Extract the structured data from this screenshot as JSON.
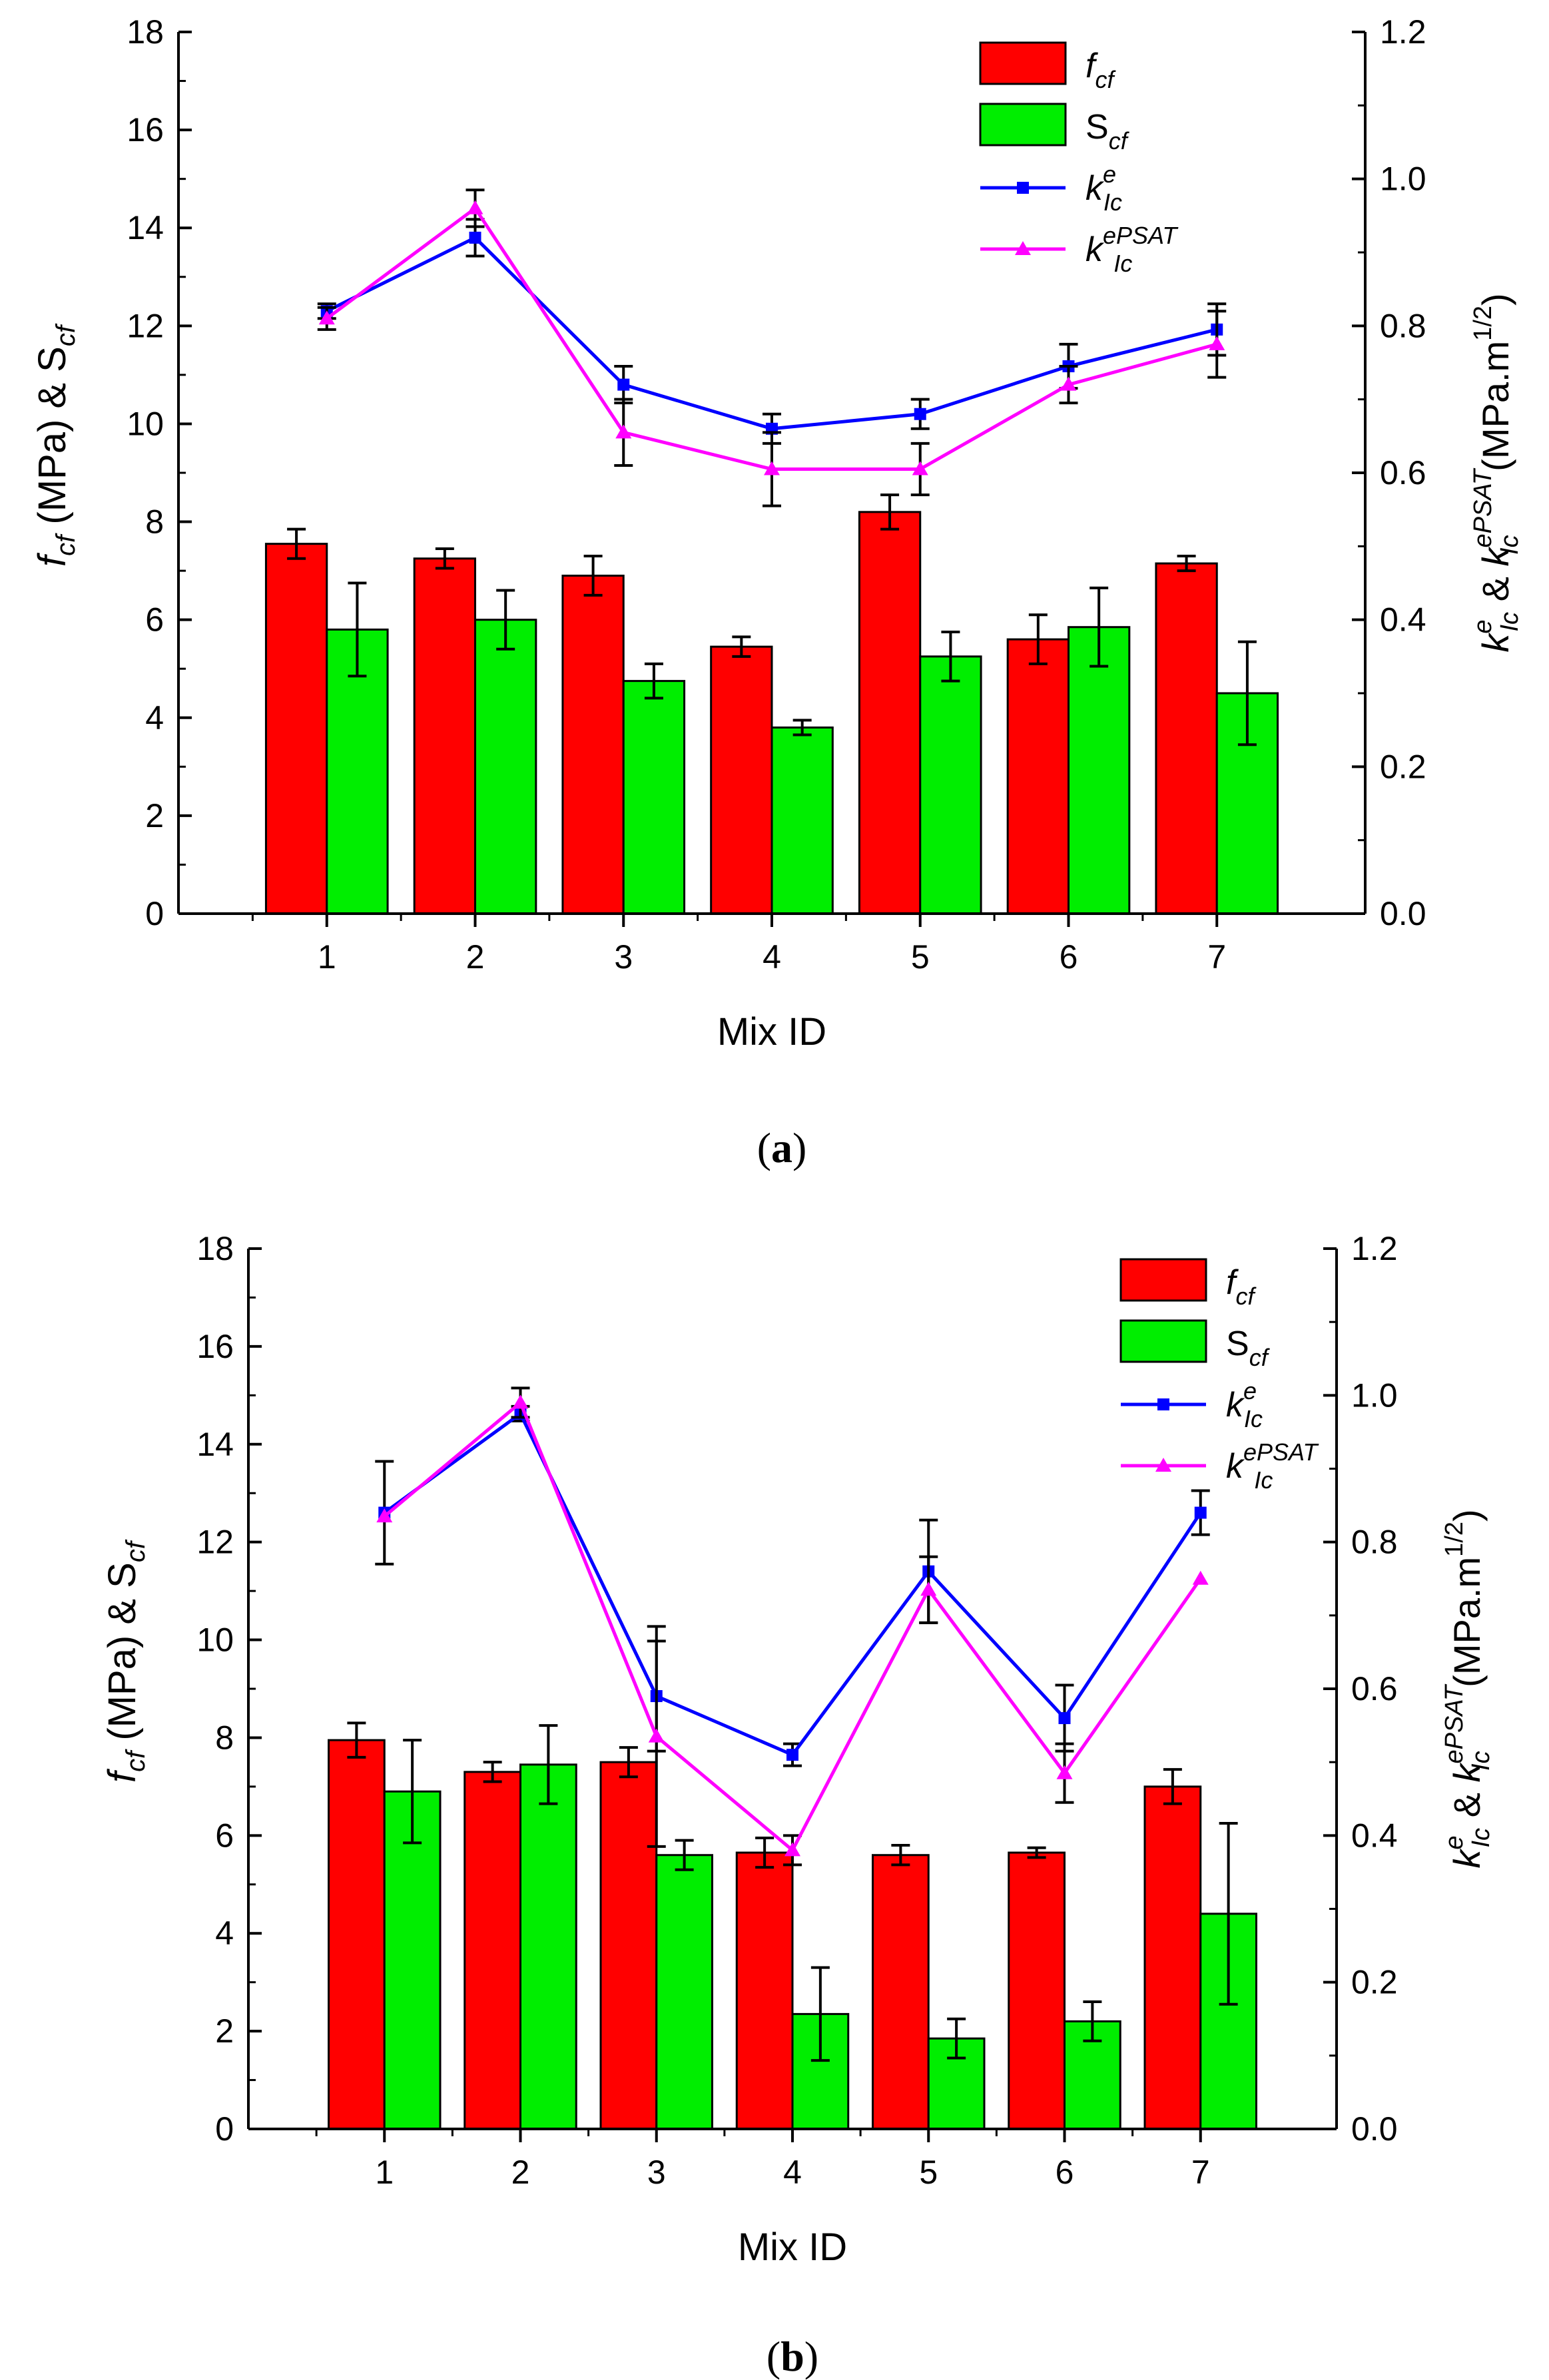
{
  "chart_data": [
    {
      "panel_label": "a",
      "type": "bar",
      "xlabel": "Mix ID",
      "ylabel_left": {
        "main": "f",
        "sub1": "cf",
        "mid": " (MPa) & S",
        "sub2": "cf"
      },
      "ylabel_right": {
        "k1": "k",
        "sup1": "e",
        "sub1": "Ic",
        "amp": " & ",
        "k2": "k",
        "sup2": "ePSAT",
        "sub2": "Ic",
        "unit": " (MPa.m",
        "unit_sup": "1/2",
        "close": ")"
      },
      "categories": [
        "1",
        "2",
        "3",
        "4",
        "5",
        "6",
        "7"
      ],
      "ylim_left": [
        0,
        18
      ],
      "yticks_left": [
        "0",
        "2",
        "4",
        "6",
        "8",
        "10",
        "12",
        "14",
        "16",
        "18"
      ],
      "ylim_right": [
        0,
        1.2
      ],
      "yticks_right": [
        "0.0",
        "0.2",
        "0.4",
        "0.6",
        "0.8",
        "1.0",
        "1.2"
      ],
      "legend": [
        {
          "main": "f",
          "sub": "cf",
          "italic": true,
          "sup": ""
        },
        {
          "main": "S",
          "sub": "cf",
          "italic": false,
          "sup": ""
        },
        {
          "main": "k",
          "sub": "Ic",
          "italic": true,
          "sup": "e"
        },
        {
          "main": "k",
          "sub": "Ic",
          "italic": true,
          "sup": "ePSAT"
        }
      ],
      "bar_series": [
        {
          "name": "f_cf",
          "color": "#ff0000",
          "values": [
            7.55,
            7.25,
            6.9,
            5.45,
            8.2,
            5.6,
            7.15
          ],
          "errors": [
            0.3,
            0.2,
            0.4,
            0.2,
            0.35,
            0.5,
            0.15
          ]
        },
        {
          "name": "S_cf",
          "color": "#00ee00",
          "values": [
            5.8,
            6.0,
            4.75,
            3.8,
            5.25,
            5.85,
            4.5
          ],
          "errors": [
            0.95,
            0.6,
            0.35,
            0.15,
            0.5,
            0.8,
            1.05
          ]
        }
      ],
      "line_series": [
        {
          "name": "k_Ic^e",
          "color": "#0000ff",
          "marker": "square",
          "values": [
            0.82,
            0.92,
            0.72,
            0.66,
            0.68,
            0.745,
            0.795
          ],
          "errors": [
            0.01,
            0.025,
            0.025,
            0.02,
            0.02,
            0.03,
            0.035
          ]
        },
        {
          "name": "k_Ic^ePSAT",
          "color": "#ff00ff",
          "marker": "triangle",
          "values": [
            0.81,
            0.96,
            0.655,
            0.605,
            0.605,
            0.72,
            0.775
          ],
          "errors": [
            0.015,
            0.025,
            0.045,
            0.05,
            0.035,
            0.025,
            0.045
          ]
        }
      ]
    },
    {
      "panel_label": "b",
      "type": "bar",
      "xlabel": "Mix ID",
      "ylabel_left": {
        "main": "f",
        "sub1": "cf",
        "mid": " (MPa) & S",
        "sub2": "cf"
      },
      "ylabel_right": {
        "k1": "k",
        "sup1": "e",
        "sub1": "Ic",
        "amp": " & ",
        "k2": "k",
        "sup2": "ePSAT",
        "sub2": "Ic",
        "unit": " (MPa.m",
        "unit_sup": "1/2",
        "close": ")"
      },
      "categories": [
        "1",
        "2",
        "3",
        "4",
        "5",
        "6",
        "7"
      ],
      "ylim_left": [
        0,
        18
      ],
      "yticks_left": [
        "0",
        "2",
        "4",
        "6",
        "8",
        "10",
        "12",
        "14",
        "16",
        "18"
      ],
      "ylim_right": [
        0,
        1.2
      ],
      "yticks_right": [
        "0.0",
        "0.2",
        "0.4",
        "0.6",
        "0.8",
        "1.0",
        "1.2"
      ],
      "legend": [
        {
          "main": "f",
          "sub": "cf",
          "italic": true,
          "sup": ""
        },
        {
          "main": "S",
          "sub": "cf",
          "italic": false,
          "sup": ""
        },
        {
          "main": "k",
          "sub": "Ic",
          "italic": true,
          "sup": "e"
        },
        {
          "main": "k",
          "sub": "Ic",
          "italic": true,
          "sup": "ePSAT"
        }
      ],
      "bar_series": [
        {
          "name": "f_cf",
          "color": "#ff0000",
          "values": [
            7.95,
            7.3,
            7.5,
            5.65,
            5.6,
            5.65,
            7.0
          ],
          "errors": [
            0.35,
            0.2,
            0.3,
            0.3,
            0.2,
            0.1,
            0.35
          ]
        },
        {
          "name": "S_cf",
          "color": "#00ee00",
          "values": [
            6.9,
            7.45,
            5.6,
            2.35,
            1.85,
            2.2,
            4.4
          ],
          "errors": [
            1.05,
            0.8,
            0.3,
            0.95,
            0.4,
            0.4,
            1.85
          ]
        }
      ],
      "line_series": [
        {
          "name": "k_Ic^e",
          "color": "#0000ff",
          "marker": "square",
          "values": [
            0.84,
            0.975,
            0.59,
            0.51,
            0.76,
            0.56,
            0.84
          ],
          "errors": [
            0.07,
            0.01,
            0.075,
            0.015,
            0.07,
            0.045,
            0.03
          ]
        },
        {
          "name": "k_Ic^ePSAT",
          "color": "#ff00ff",
          "marker": "triangle",
          "values": [
            0.835,
            0.99,
            0.535,
            0.38,
            0.735,
            0.485,
            0.75
          ],
          "errors": [
            0.0,
            0.02,
            0.15,
            0.02,
            0.045,
            0.04,
            0.0
          ]
        }
      ]
    }
  ]
}
